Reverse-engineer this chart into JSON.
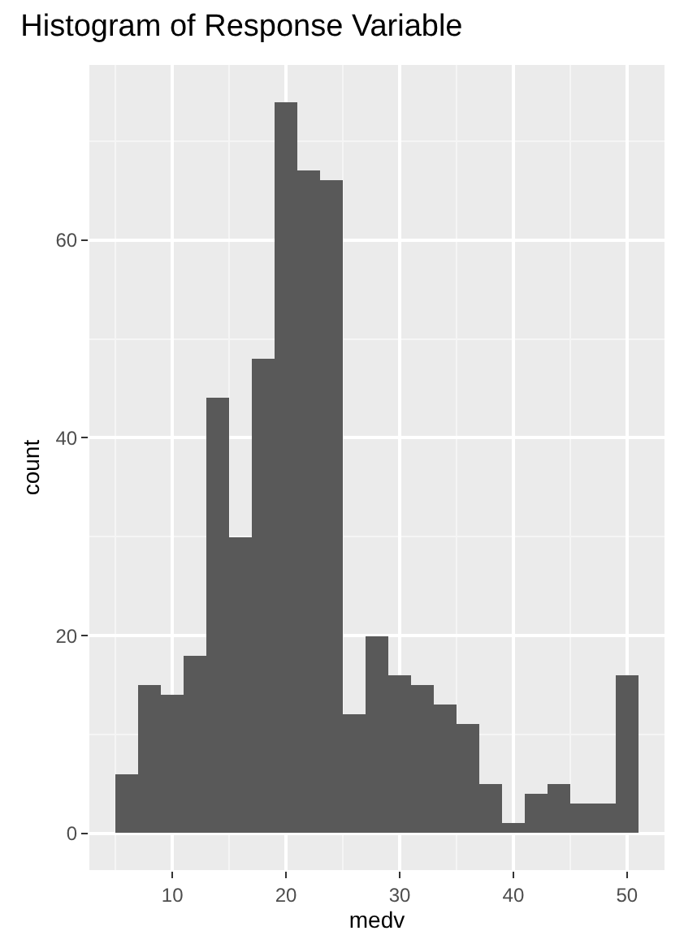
{
  "chart_data": {
    "type": "histogram",
    "title": "Histogram of Response Variable",
    "xlabel": "medv",
    "ylabel": "count",
    "bins": [
      5,
      7,
      9,
      11,
      13,
      15,
      17,
      19,
      21,
      23,
      25,
      27,
      29,
      31,
      33,
      35,
      37,
      39,
      41,
      43,
      45,
      47,
      49,
      51
    ],
    "values": [
      6,
      15,
      14,
      18,
      44,
      30,
      48,
      74,
      67,
      66,
      12,
      20,
      16,
      15,
      13,
      11,
      5,
      1,
      4,
      5,
      3,
      3,
      16
    ],
    "color": "#595959",
    "xlim": [
      2.7,
      53.3
    ],
    "xticks": [
      10,
      20,
      30,
      40,
      50
    ],
    "ylim": [
      -3.7,
      77.7
    ],
    "yticks": [
      0,
      20,
      40,
      60
    ],
    "grid": true
  }
}
